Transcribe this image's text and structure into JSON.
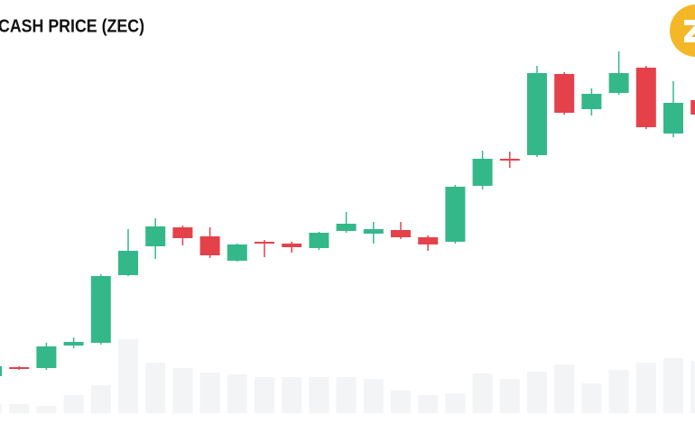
{
  "chart_data": {
    "type": "candlestick",
    "title": "CASH PRICE (ZEC)",
    "open": [
      53,
      63,
      62,
      87,
      90,
      165,
      197,
      218,
      208,
      181,
      202,
      200,
      195,
      214,
      211,
      215,
      207,
      202,
      264,
      294,
      298,
      388,
      349,
      367,
      395,
      322,
      359
    ],
    "close": [
      64,
      61,
      86,
      91,
      164,
      192,
      219,
      206,
      187,
      199,
      200,
      196,
      212,
      222,
      216,
      207,
      199,
      263,
      294,
      292,
      389,
      345,
      366,
      389,
      329,
      356,
      343
    ],
    "high": [
      66,
      64,
      90,
      96,
      166,
      216,
      228,
      220,
      218,
      200,
      204,
      202,
      213,
      235,
      224,
      224,
      209,
      265,
      303,
      302,
      397,
      390,
      372,
      413,
      397,
      380,
      362
    ],
    "low": [
      52,
      60,
      60,
      84,
      88,
      164,
      183,
      198,
      184,
      180,
      185,
      190,
      193,
      212,
      200,
      205,
      192,
      200,
      260,
      284,
      296,
      343,
      342,
      365,
      327,
      318,
      340
    ],
    "volume": [
      10,
      10,
      8,
      20,
      31,
      82,
      56,
      50,
      45,
      43,
      40,
      40,
      40,
      40,
      38,
      25,
      20,
      22,
      44,
      38,
      46,
      54,
      33,
      48,
      56,
      61,
      58
    ],
    "up_color": "#34b88a",
    "down_color": "#e5414b",
    "volume_color": "#f3f4f6",
    "ylim": [
      0,
      470
    ],
    "y2lim": [
      0,
      458
    ]
  }
}
